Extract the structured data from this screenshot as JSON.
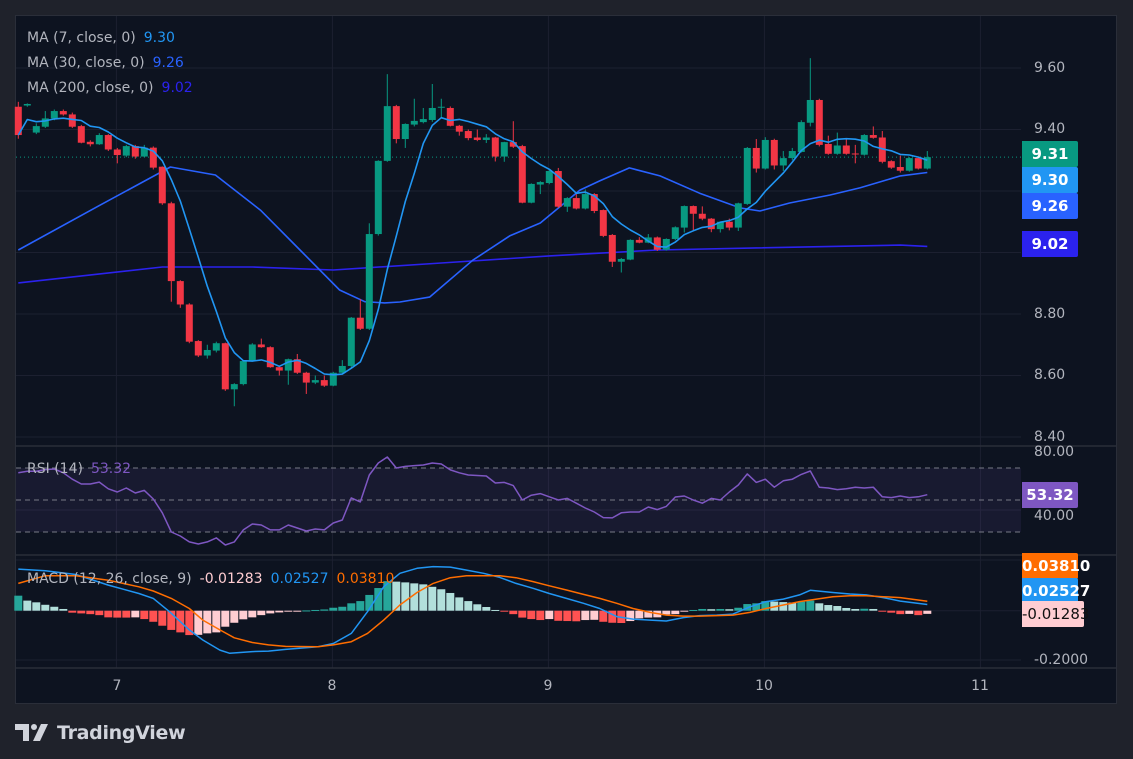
{
  "brand": {
    "name": "TradingView",
    "logo_icon": "tradingview-logo-icon"
  },
  "colors": {
    "up": "#089981",
    "down": "#f23645",
    "ma7": "#2196f3",
    "ma30": "#2962ff",
    "ma200": "#2b22ee",
    "rsi": "#7e57c2",
    "macd": "#2196f3",
    "signal": "#ff6d00",
    "hist_up_strong": "#26a69a",
    "hist_up_weak": "#b2dfdb",
    "hist_down_strong": "#ff5252",
    "hist_down_weak": "#ffcdd2"
  },
  "legend": {
    "ma7": {
      "label": "MA (7, close, 0)",
      "value": "9.30"
    },
    "ma30": {
      "label": "MA (30, close, 0)",
      "value": "9.26"
    },
    "ma200": {
      "label": "MA (200, close, 0)",
      "value": "9.02"
    },
    "rsi": {
      "label": "RSI (14)",
      "value": "53.32"
    },
    "macd": {
      "label": "MACD (12, 26, close, 9)",
      "hist": "-0.01283",
      "macd": "0.02527",
      "signal": "0.03810"
    }
  },
  "price_tags": {
    "last": "9.31",
    "ma7": "9.30",
    "ma30": "9.26",
    "ma200": "9.02",
    "rsi": "53.32",
    "signal": "0.03810",
    "macd": "0.02527",
    "hist": "-0.01283"
  },
  "chart_data": {
    "type": "candlestick",
    "interval_note": "hourly candles, index 0..101",
    "price_axis": {
      "ticks": [
        "9.60",
        "9.40",
        "8.80",
        "8.60",
        "8.40"
      ],
      "tick_values": [
        9.6,
        9.4,
        8.8,
        8.6,
        8.4
      ],
      "grid_values": [
        9.6,
        9.4,
        9.2,
        9.0,
        8.8,
        8.6,
        8.4
      ],
      "range": [
        8.37,
        9.69
      ]
    },
    "time_axis": {
      "ticks": [
        {
          "label": "7",
          "index": 11
        },
        {
          "label": "8",
          "index": 35
        },
        {
          "label": "9",
          "index": 59
        },
        {
          "label": "10",
          "index": 83
        },
        {
          "label": "11",
          "index": 107
        }
      ]
    },
    "last_price": 9.31,
    "candles_ohlc": [
      [
        9.474,
        9.49,
        9.37,
        9.382
      ],
      [
        9.478,
        9.485,
        9.474,
        9.483
      ],
      [
        9.39,
        9.42,
        9.385,
        9.411
      ],
      [
        9.409,
        9.46,
        9.405,
        9.436
      ],
      [
        9.436,
        9.465,
        9.43,
        9.46
      ],
      [
        9.46,
        9.465,
        9.445,
        9.449
      ],
      [
        9.449,
        9.455,
        9.405,
        9.409
      ],
      [
        9.411,
        9.415,
        9.355,
        9.357
      ],
      [
        9.36,
        9.365,
        9.345,
        9.352
      ],
      [
        9.352,
        9.388,
        9.35,
        9.382
      ],
      [
        9.382,
        9.385,
        9.33,
        9.335
      ],
      [
        9.335,
        9.34,
        9.29,
        9.317
      ],
      [
        9.315,
        9.35,
        9.31,
        9.346
      ],
      [
        9.346,
        9.35,
        9.305,
        9.312
      ],
      [
        9.312,
        9.35,
        9.31,
        9.341
      ],
      [
        9.341,
        9.345,
        9.27,
        9.276
      ],
      [
        9.279,
        9.28,
        9.155,
        9.16
      ],
      [
        9.16,
        9.165,
        8.84,
        8.907
      ],
      [
        8.907,
        8.91,
        8.82,
        8.831
      ],
      [
        8.831,
        8.835,
        8.705,
        8.71
      ],
      [
        8.712,
        8.715,
        8.66,
        8.665
      ],
      [
        8.665,
        8.7,
        8.655,
        8.683
      ],
      [
        8.681,
        8.71,
        8.675,
        8.705
      ],
      [
        8.705,
        8.707,
        8.55,
        8.555
      ],
      [
        8.555,
        8.575,
        8.5,
        8.572
      ],
      [
        8.572,
        8.65,
        8.568,
        8.647
      ],
      [
        8.647,
        8.705,
        8.645,
        8.701
      ],
      [
        8.701,
        8.72,
        8.69,
        8.692
      ],
      [
        8.692,
        8.695,
        8.625,
        8.627
      ],
      [
        8.627,
        8.63,
        8.6,
        8.616
      ],
      [
        8.616,
        8.655,
        8.57,
        8.653
      ],
      [
        8.653,
        8.67,
        8.605,
        8.609
      ],
      [
        8.609,
        8.612,
        8.54,
        8.577
      ],
      [
        8.577,
        8.6,
        8.572,
        8.585
      ],
      [
        8.585,
        8.6,
        8.563,
        8.567
      ],
      [
        8.567,
        8.612,
        8.565,
        8.609
      ],
      [
        8.609,
        8.65,
        8.605,
        8.631
      ],
      [
        8.631,
        8.79,
        8.625,
        8.788
      ],
      [
        8.788,
        8.849,
        8.748,
        8.752
      ],
      [
        8.752,
        9.095,
        8.748,
        9.06
      ],
      [
        9.06,
        9.3,
        9.055,
        9.298
      ],
      [
        9.298,
        9.58,
        9.295,
        9.476
      ],
      [
        9.476,
        9.48,
        9.355,
        9.369
      ],
      [
        9.369,
        9.42,
        9.34,
        9.418
      ],
      [
        9.416,
        9.5,
        9.41,
        9.428
      ],
      [
        9.424,
        9.47,
        9.42,
        9.434
      ],
      [
        9.431,
        9.548,
        9.425,
        9.47
      ],
      [
        9.472,
        9.5,
        9.44,
        9.474
      ],
      [
        9.47,
        9.475,
        9.41,
        9.412
      ],
      [
        9.412,
        9.415,
        9.38,
        9.393
      ],
      [
        9.395,
        9.4,
        9.365,
        9.372
      ],
      [
        9.374,
        9.4,
        9.362,
        9.366
      ],
      [
        9.366,
        9.385,
        9.356,
        9.374
      ],
      [
        9.374,
        9.376,
        9.296,
        9.312
      ],
      [
        9.312,
        9.36,
        9.295,
        9.359
      ],
      [
        9.359,
        9.427,
        9.34,
        9.344
      ],
      [
        9.346,
        9.35,
        9.16,
        9.162
      ],
      [
        9.162,
        9.225,
        9.16,
        9.223
      ],
      [
        9.221,
        9.232,
        9.19,
        9.229
      ],
      [
        9.226,
        9.268,
        9.222,
        9.265
      ],
      [
        9.265,
        9.275,
        9.145,
        9.149
      ],
      [
        9.149,
        9.18,
        9.132,
        9.177
      ],
      [
        9.177,
        9.19,
        9.14,
        9.143
      ],
      [
        9.143,
        9.205,
        9.14,
        9.19
      ],
      [
        9.19,
        9.193,
        9.128,
        9.135
      ],
      [
        9.138,
        9.14,
        9.05,
        9.054
      ],
      [
        9.057,
        9.06,
        8.953,
        8.97
      ],
      [
        8.97,
        8.982,
        8.935,
        8.979
      ],
      [
        8.977,
        9.043,
        8.975,
        9.041
      ],
      [
        9.041,
        9.05,
        9.03,
        9.032
      ],
      [
        9.032,
        9.06,
        9.03,
        9.049
      ],
      [
        9.049,
        9.052,
        9.005,
        9.009
      ],
      [
        9.009,
        9.046,
        9.006,
        9.044
      ],
      [
        9.044,
        9.085,
        9.04,
        9.082
      ],
      [
        9.081,
        9.153,
        9.065,
        9.151
      ],
      [
        9.151,
        9.153,
        9.07,
        9.126
      ],
      [
        9.126,
        9.15,
        9.105,
        9.11
      ],
      [
        9.11,
        9.112,
        9.066,
        9.076
      ],
      [
        9.076,
        9.1,
        9.065,
        9.1
      ],
      [
        9.1,
        9.11,
        9.072,
        9.081
      ],
      [
        9.081,
        9.162,
        9.07,
        9.16
      ],
      [
        9.158,
        9.343,
        9.155,
        9.34
      ],
      [
        9.34,
        9.369,
        9.26,
        9.273
      ],
      [
        9.273,
        9.375,
        9.27,
        9.366
      ],
      [
        9.366,
        9.37,
        9.27,
        9.283
      ],
      [
        9.283,
        9.33,
        9.265,
        9.307
      ],
      [
        9.307,
        9.34,
        9.3,
        9.33
      ],
      [
        9.327,
        9.43,
        9.325,
        9.424
      ],
      [
        9.422,
        9.632,
        9.41,
        9.496
      ],
      [
        9.496,
        9.5,
        9.345,
        9.35
      ],
      [
        9.353,
        9.38,
        9.318,
        9.321
      ],
      [
        9.321,
        9.39,
        9.318,
        9.348
      ],
      [
        9.348,
        9.37,
        9.318,
        9.321
      ],
      [
        9.322,
        9.35,
        9.29,
        9.32
      ],
      [
        9.318,
        9.385,
        9.315,
        9.382
      ],
      [
        9.382,
        9.41,
        9.37,
        9.373
      ],
      [
        9.374,
        9.395,
        9.29,
        9.295
      ],
      [
        9.297,
        9.3,
        9.272,
        9.276
      ],
      [
        9.278,
        9.315,
        9.26,
        9.266
      ],
      [
        9.266,
        9.31,
        9.263,
        9.307
      ],
      [
        9.307,
        9.31,
        9.27,
        9.273
      ],
      [
        9.273,
        9.33,
        9.27,
        9.31
      ]
    ],
    "ma30_points": [
      [
        0,
        9.008
      ],
      [
        9.1,
        9.154
      ],
      [
        16.9,
        9.278
      ],
      [
        21.9,
        9.252
      ],
      [
        26.9,
        9.138
      ],
      [
        31.3,
        9.008
      ],
      [
        35.7,
        8.878
      ],
      [
        38.5,
        8.84
      ],
      [
        40.7,
        8.836
      ],
      [
        42.4,
        8.839
      ],
      [
        45.7,
        8.855
      ],
      [
        50.5,
        8.975
      ],
      [
        54.6,
        9.054
      ],
      [
        58,
        9.096
      ],
      [
        62.4,
        9.203
      ],
      [
        64.6,
        9.233
      ],
      [
        67.9,
        9.275
      ],
      [
        71.3,
        9.249
      ],
      [
        75.7,
        9.193
      ],
      [
        80.2,
        9.145
      ],
      [
        82.4,
        9.135
      ],
      [
        85.7,
        9.161
      ],
      [
        90.2,
        9.187
      ],
      [
        93.5,
        9.21
      ],
      [
        98,
        9.249
      ],
      [
        101,
        9.26
      ]
    ],
    "ma200_points": [
      [
        0,
        8.901
      ],
      [
        16,
        8.953
      ],
      [
        26,
        8.953
      ],
      [
        35,
        8.943
      ],
      [
        47,
        8.966
      ],
      [
        59,
        8.989
      ],
      [
        71,
        9.008
      ],
      [
        82,
        9.015
      ],
      [
        98,
        9.024
      ],
      [
        101,
        9.02
      ]
    ],
    "rsi": {
      "range": [
        0,
        100
      ],
      "ticks": [
        "80.00",
        "40.00"
      ],
      "tick_values": [
        80,
        40
      ],
      "bands": [
        70,
        50,
        30
      ],
      "values": [
        67,
        68,
        68,
        69,
        69.4,
        67,
        63,
        60,
        60,
        61.2,
        57,
        55,
        57.5,
        54.4,
        56,
        50.6,
        42,
        30,
        27.5,
        23.8,
        22.5,
        23.8,
        26.3,
        21.9,
        23.8,
        31.3,
        35,
        34.4,
        31.3,
        31.3,
        34.4,
        32.5,
        30.6,
        31.9,
        31.3,
        35.6,
        37.5,
        51.3,
        48.8,
        65.6,
        73.1,
        76.9,
        70,
        71,
        71.5,
        71.9,
        73.1,
        72.5,
        68.8,
        67,
        65.6,
        65.3,
        65,
        60.6,
        61,
        59,
        50,
        53,
        54,
        52,
        50,
        51,
        48,
        45,
        42.5,
        39,
        38.8,
        42,
        42.5,
        42.5,
        45.6,
        44,
        46,
        51.9,
        52.5,
        50,
        48,
        51,
        50,
        55,
        59.4,
        66.3,
        61,
        63,
        58,
        62,
        63,
        66,
        68.1,
        58,
        57.5,
        56.5,
        57,
        58,
        57.5,
        58,
        52,
        51.5,
        52.5,
        51.5,
        52,
        53.32
      ]
    },
    "macd": {
      "ticks": [
        "-0.2000"
      ],
      "tick_values": [
        -0.2
      ],
      "histogram": [
        0.061,
        0.041,
        0.034,
        0.024,
        0.016,
        0.007,
        -0.008,
        -0.011,
        -0.014,
        -0.018,
        -0.027,
        -0.028,
        -0.028,
        -0.027,
        -0.034,
        -0.045,
        -0.061,
        -0.078,
        -0.088,
        -0.099,
        -0.098,
        -0.092,
        -0.088,
        -0.065,
        -0.049,
        -0.035,
        -0.027,
        -0.018,
        -0.011,
        -0.007,
        -0.004,
        -0.002,
        0.001,
        0.003,
        0.005,
        0.012,
        0.016,
        0.03,
        0.039,
        0.064,
        0.092,
        0.12,
        0.118,
        0.115,
        0.111,
        0.107,
        0.097,
        0.087,
        0.072,
        0.054,
        0.039,
        0.026,
        0.015,
        0.003,
        -0.004,
        -0.014,
        -0.028,
        -0.034,
        -0.038,
        -0.034,
        -0.041,
        -0.042,
        -0.043,
        -0.038,
        -0.037,
        -0.045,
        -0.049,
        -0.05,
        -0.042,
        -0.031,
        -0.028,
        -0.027,
        -0.015,
        -0.014,
        -0.004,
        0.003,
        0.007,
        0.006,
        0.007,
        0.006,
        0.012,
        0.027,
        0.03,
        0.039,
        0.037,
        0.035,
        0.033,
        0.037,
        0.041,
        0.03,
        0.023,
        0.019,
        0.011,
        0.007,
        0.008,
        0.007,
        -0.004,
        -0.008,
        -0.014,
        -0.013,
        -0.018,
        -0.01283
      ],
      "macd_points": [
        [
          0,
          0.169
        ],
        [
          3,
          0.162
        ],
        [
          6.4,
          0.147
        ],
        [
          10,
          0.104
        ],
        [
          13.4,
          0.07
        ],
        [
          15,
          0.05
        ],
        [
          16.8,
          -0.004
        ],
        [
          19,
          -0.078
        ],
        [
          20.5,
          -0.119
        ],
        [
          22.4,
          -0.16
        ],
        [
          23.5,
          -0.173
        ],
        [
          26,
          -0.166
        ],
        [
          27.8,
          -0.164
        ],
        [
          29.7,
          -0.157
        ],
        [
          33.3,
          -0.146
        ],
        [
          35,
          -0.133
        ],
        [
          37,
          -0.092
        ],
        [
          38.8,
          -0.004
        ],
        [
          40.6,
          0.097
        ],
        [
          42.4,
          0.152
        ],
        [
          44.3,
          0.172
        ],
        [
          46.1,
          0.179
        ],
        [
          48,
          0.177
        ],
        [
          49.8,
          0.165
        ],
        [
          51.7,
          0.152
        ],
        [
          53.5,
          0.135
        ],
        [
          55.3,
          0.111
        ],
        [
          57.2,
          0.091
        ],
        [
          59,
          0.07
        ],
        [
          60.9,
          0.05
        ],
        [
          62.8,
          0.03
        ],
        [
          64.6,
          0.009
        ],
        [
          66.5,
          -0.024
        ],
        [
          68.3,
          -0.034
        ],
        [
          70.2,
          -0.038
        ],
        [
          72,
          -0.042
        ],
        [
          73.9,
          -0.028
        ],
        [
          75.7,
          -0.02
        ],
        [
          77.6,
          -0.018
        ],
        [
          79.4,
          -0.014
        ],
        [
          81.3,
          0.016
        ],
        [
          83.1,
          0.037
        ],
        [
          85,
          0.047
        ],
        [
          86.8,
          0.064
        ],
        [
          88,
          0.083
        ],
        [
          90.5,
          0.074
        ],
        [
          92.4,
          0.068
        ],
        [
          94.2,
          0.064
        ],
        [
          96.1,
          0.053
        ],
        [
          98,
          0.039
        ],
        [
          101,
          0.02527
        ]
      ],
      "signal_points": [
        [
          0,
          0.111
        ],
        [
          3,
          0.142
        ],
        [
          6.4,
          0.142
        ],
        [
          10,
          0.124
        ],
        [
          13.4,
          0.097
        ],
        [
          15,
          0.08
        ],
        [
          17,
          0.05
        ],
        [
          19,
          0.009
        ],
        [
          20.5,
          -0.038
        ],
        [
          22.4,
          -0.078
        ],
        [
          24,
          -0.11
        ],
        [
          26,
          -0.129
        ],
        [
          27.8,
          -0.139
        ],
        [
          29.7,
          -0.145
        ],
        [
          33.3,
          -0.146
        ],
        [
          35,
          -0.139
        ],
        [
          37,
          -0.126
        ],
        [
          38.8,
          -0.092
        ],
        [
          40.6,
          -0.038
        ],
        [
          42.4,
          0.023
        ],
        [
          44.3,
          0.074
        ],
        [
          46.1,
          0.111
        ],
        [
          48,
          0.134
        ],
        [
          49.8,
          0.142
        ],
        [
          53.5,
          0.142
        ],
        [
          55.3,
          0.134
        ],
        [
          57.2,
          0.118
        ],
        [
          59,
          0.101
        ],
        [
          60.9,
          0.084
        ],
        [
          62.8,
          0.066
        ],
        [
          64.6,
          0.05
        ],
        [
          66.5,
          0.03
        ],
        [
          68.3,
          0.009
        ],
        [
          70.2,
          -0.007
        ],
        [
          72,
          -0.018
        ],
        [
          73.9,
          -0.022
        ],
        [
          75.7,
          -0.022
        ],
        [
          77.6,
          -0.02
        ],
        [
          79.4,
          -0.018
        ],
        [
          81.3,
          -0.007
        ],
        [
          83.1,
          0.009
        ],
        [
          85,
          0.023
        ],
        [
          86.8,
          0.037
        ],
        [
          88.7,
          0.047
        ],
        [
          90.5,
          0.057
        ],
        [
          92.4,
          0.061
        ],
        [
          94.2,
          0.061
        ],
        [
          96.1,
          0.057
        ],
        [
          98,
          0.053
        ],
        [
          101,
          0.0381
        ]
      ]
    }
  }
}
